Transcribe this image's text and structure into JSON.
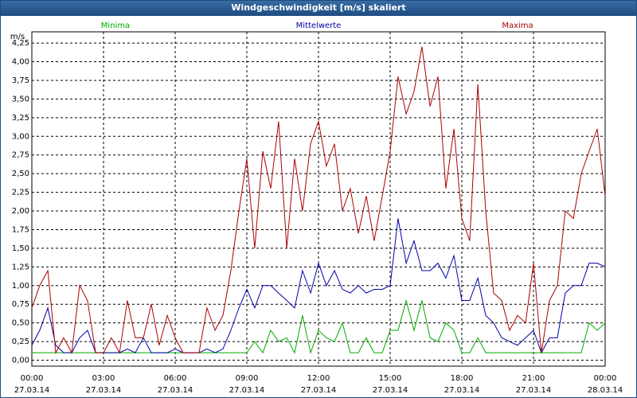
{
  "chart_data": {
    "type": "line",
    "title": "Windgeschwindigkeit [m/s] skaliert",
    "ylabel": "m/s",
    "x": [
      0,
      0.33,
      0.67,
      1,
      1.33,
      1.67,
      2,
      2.33,
      2.67,
      3,
      3.33,
      3.67,
      4,
      4.33,
      4.67,
      5,
      5.33,
      5.67,
      6,
      6.33,
      6.67,
      7,
      7.33,
      7.67,
      8,
      8.33,
      8.67,
      9,
      9.33,
      9.67,
      10,
      10.33,
      10.67,
      11,
      11.33,
      11.67,
      12,
      12.33,
      12.67,
      13,
      13.33,
      13.67,
      14,
      14.33,
      14.67,
      15,
      15.33,
      15.67,
      16,
      16.33,
      16.67,
      17,
      17.33,
      17.67,
      18,
      18.33,
      18.67,
      19,
      19.33,
      19.67,
      20,
      20.33,
      20.67,
      21,
      21.33,
      21.67,
      22,
      22.33,
      22.67,
      23,
      23.33,
      23.67,
      24
    ],
    "series": [
      {
        "name": "Minima",
        "color": "#00aa00",
        "values": [
          0.1,
          0.1,
          0.1,
          0.1,
          0.1,
          0.1,
          0.1,
          0.1,
          0.1,
          0.1,
          0.1,
          0.1,
          0.1,
          0.1,
          0.1,
          0.1,
          0.1,
          0.1,
          0.1,
          0.1,
          0.1,
          0.1,
          0.1,
          0.1,
          0.1,
          0.1,
          0.1,
          0.1,
          0.25,
          0.1,
          0.4,
          0.25,
          0.3,
          0.1,
          0.6,
          0.1,
          0.4,
          0.3,
          0.25,
          0.5,
          0.1,
          0.1,
          0.3,
          0.1,
          0.1,
          0.4,
          0.4,
          0.8,
          0.4,
          0.8,
          0.3,
          0.25,
          0.5,
          0.4,
          0.1,
          0.1,
          0.3,
          0.1,
          0.1,
          0.1,
          0.1,
          0.1,
          0.1,
          0.1,
          0.1,
          0.1,
          0.1,
          0.1,
          0.1,
          0.1,
          0.5,
          0.4,
          0.5
        ]
      },
      {
        "name": "Mittelwerte",
        "color": "#0000aa",
        "values": [
          0.2,
          0.4,
          0.7,
          0.2,
          0.1,
          0.1,
          0.3,
          0.4,
          0.1,
          0.1,
          0.1,
          0.1,
          0.15,
          0.1,
          0.3,
          0.1,
          0.1,
          0.1,
          0.15,
          0.1,
          0.1,
          0.1,
          0.15,
          0.1,
          0.15,
          0.4,
          0.7,
          0.95,
          0.7,
          1.0,
          1.0,
          0.9,
          0.8,
          0.7,
          1.2,
          0.9,
          1.3,
          1.0,
          1.2,
          0.95,
          0.9,
          1.0,
          0.9,
          0.95,
          0.95,
          1.0,
          1.9,
          1.3,
          1.6,
          1.2,
          1.2,
          1.3,
          1.1,
          1.4,
          0.8,
          0.8,
          1.1,
          0.6,
          0.5,
          0.3,
          0.25,
          0.2,
          0.3,
          0.4,
          0.1,
          0.3,
          0.3,
          0.9,
          1.0,
          1.0,
          1.3,
          1.3,
          1.25
        ]
      },
      {
        "name": "Maxima",
        "color": "#aa0000",
        "values": [
          0.7,
          1.0,
          1.2,
          0.1,
          0.3,
          0.1,
          1.0,
          0.8,
          0.1,
          0.1,
          0.3,
          0.1,
          0.8,
          0.3,
          0.3,
          0.75,
          0.2,
          0.6,
          0.3,
          0.1,
          0.1,
          0.1,
          0.7,
          0.4,
          0.6,
          1.2,
          2.0,
          2.7,
          1.5,
          2.8,
          2.3,
          3.2,
          1.5,
          2.7,
          2.0,
          2.9,
          3.2,
          2.6,
          2.9,
          2.0,
          2.3,
          1.7,
          2.2,
          1.6,
          2.2,
          2.8,
          3.8,
          3.3,
          3.6,
          4.2,
          3.4,
          3.8,
          2.3,
          3.1,
          1.9,
          1.6,
          3.7,
          2.0,
          0.9,
          0.8,
          0.4,
          0.6,
          0.5,
          1.3,
          0.1,
          0.8,
          1.0,
          2.0,
          1.9,
          2.5,
          2.8,
          3.1,
          2.2
        ]
      }
    ],
    "xlim": [
      0,
      24
    ],
    "xticks": [
      {
        "value": 0,
        "label": "00:00"
      },
      {
        "value": 3,
        "label": "03:00"
      },
      {
        "value": 6,
        "label": "06:00"
      },
      {
        "value": 9,
        "label": "09:00"
      },
      {
        "value": 12,
        "label": "12:00"
      },
      {
        "value": 15,
        "label": "15:00"
      },
      {
        "value": 18,
        "label": "18:00"
      },
      {
        "value": 21,
        "label": "21:00"
      },
      {
        "value": 24,
        "label": "00:00"
      }
    ],
    "xtick_dates": [
      "27.03.14",
      "27.03.14",
      "27.03.14",
      "27.03.14",
      "27.03.14",
      "27.03.14",
      "27.03.14",
      "27.03.14",
      "28.03.14"
    ],
    "ylim": [
      -0.08,
      4.4
    ],
    "yticks": [
      {
        "value": 0,
        "label": "0,00"
      },
      {
        "value": 0.25,
        "label": "0,25"
      },
      {
        "value": 0.5,
        "label": "0,50"
      },
      {
        "value": 0.75,
        "label": "0,75"
      },
      {
        "value": 1,
        "label": "1,00"
      },
      {
        "value": 1.25,
        "label": "1,25"
      },
      {
        "value": 1.5,
        "label": "1,50"
      },
      {
        "value": 1.75,
        "label": "1,75"
      },
      {
        "value": 2,
        "label": "2,00"
      },
      {
        "value": 2.25,
        "label": "2,25"
      },
      {
        "value": 2.5,
        "label": "2,50"
      },
      {
        "value": 2.75,
        "label": "2,75"
      },
      {
        "value": 3,
        "label": "3,00"
      },
      {
        "value": 3.25,
        "label": "3,25"
      },
      {
        "value": 3.5,
        "label": "3,50"
      },
      {
        "value": 3.75,
        "label": "3,75"
      },
      {
        "value": 4,
        "label": "4,00"
      },
      {
        "value": 4.25,
        "label": "4,25"
      }
    ],
    "grid": true
  }
}
